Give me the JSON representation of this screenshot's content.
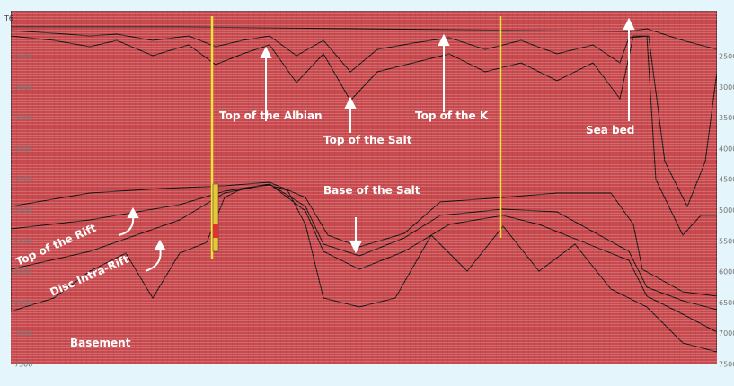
{
  "top_label": "T6",
  "left_axis": [
    2500,
    3000,
    3500,
    4000,
    4500,
    5000,
    5500,
    6000,
    6500,
    7000,
    7500
  ],
  "right_axis": [
    2500,
    3000,
    3500,
    4000,
    4500,
    5000,
    5500,
    6000,
    6500,
    7000,
    7500
  ],
  "annotations": {
    "top_albian": "Top of the Albian",
    "top_salt": "Top of the Salt",
    "top_k": "Top of the K",
    "sea_bed": "Sea bed",
    "base_salt": "Base of the Salt",
    "top_rift": "Top of the Rift",
    "disc_intra_rift": "Disc Intra-Rift",
    "basement": "Basement"
  }
}
